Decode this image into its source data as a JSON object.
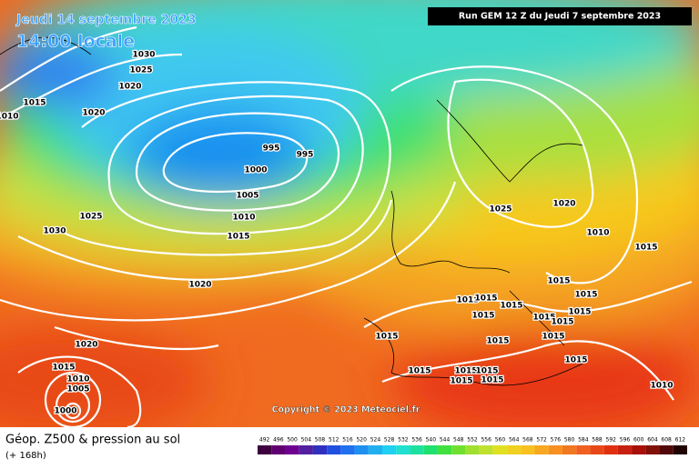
{
  "header": {
    "date": "Jeudi 14 septembre 2023",
    "time": "14:00 locale",
    "run": "Run GEM 12 Z du Jeudi 7 septembre 2023"
  },
  "copyright": "Copyright © 2023 Meteociel.fr",
  "footer": {
    "title": "Géop. Z500 & pression au sol",
    "lead": "(+ 168h)"
  },
  "scale": [
    "492",
    "496",
    "500",
    "504",
    "508",
    "512",
    "516",
    "520",
    "524",
    "528",
    "532",
    "536",
    "540",
    "544",
    "548",
    "552",
    "556",
    "560",
    "564",
    "568",
    "572",
    "576",
    "580",
    "584",
    "588",
    "592",
    "596",
    "600",
    "604",
    "608",
    "612"
  ],
  "isobar_labels": [
    "1030",
    "1025",
    "1020",
    "1015",
    "1010",
    "1020",
    "995",
    "995",
    "1000",
    "1005",
    "1010",
    "1015",
    "1025",
    "1030",
    "1020",
    "1020",
    "1015",
    "1010",
    "1005",
    "1000",
    "1025",
    "1020",
    "1010",
    "1015",
    "1015",
    "1015",
    "1015",
    "1015",
    "1015",
    "1015",
    "1015",
    "1015",
    "1015",
    "1015",
    "1015",
    "1015",
    "1015",
    "1015",
    "1015",
    "1015",
    "1015",
    "1015",
    "1010"
  ]
}
